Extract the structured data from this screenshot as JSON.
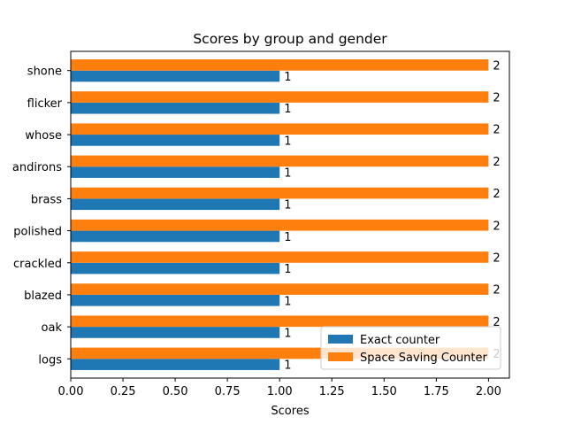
{
  "chart_data": {
    "type": "bar",
    "orientation": "horizontal",
    "title": "Scores by group and gender",
    "xlabel": "Scores",
    "ylabel": "",
    "xlim": [
      0,
      2.1
    ],
    "xticks": [
      "0.00",
      "0.25",
      "0.50",
      "0.75",
      "1.00",
      "1.25",
      "1.50",
      "1.75",
      "2.00"
    ],
    "categories": [
      "logs",
      "oak",
      "blazed",
      "crackled",
      "polished",
      "brass",
      "andirons",
      "whose",
      "flicker",
      "shone"
    ],
    "series": [
      {
        "name": "Exact counter",
        "color": "#1f77b4",
        "values": [
          1,
          1,
          1,
          1,
          1,
          1,
          1,
          1,
          1,
          1
        ]
      },
      {
        "name": "Space Saving Counter",
        "color": "#ff7f0e",
        "values": [
          2,
          2,
          2,
          2,
          2,
          2,
          2,
          2,
          2,
          2
        ]
      }
    ],
    "grid": false,
    "legend_position": "lower-right"
  }
}
